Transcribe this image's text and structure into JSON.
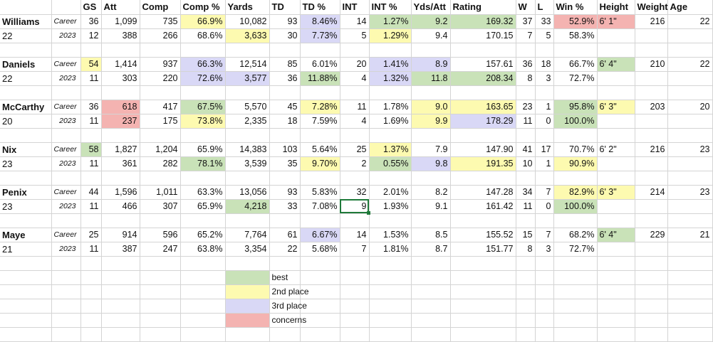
{
  "headers": [
    "",
    "",
    "GS",
    "Att",
    "Comp",
    "Comp %",
    "Yards",
    "TD",
    "TD %",
    "INT",
    "INT %",
    "Yds/Att",
    "Rating",
    "W",
    "L",
    "Win %",
    "Height",
    "Weight",
    "Age"
  ],
  "players": [
    {
      "name": "Williams",
      "age": "22",
      "career": {
        "type": "Career",
        "values": [
          "36",
          "1,099",
          "735",
          "66.9%",
          "10,082",
          "93",
          "8.46%",
          "14",
          "1.27%",
          "9.2",
          "169.32",
          "37",
          "33",
          "52.9%",
          "6' 1\"",
          "216",
          "22"
        ],
        "colors": [
          "",
          "",
          "",
          "second",
          "",
          "",
          "third",
          "",
          "best",
          "best",
          "best",
          "",
          "",
          "concern",
          "concern",
          "",
          ""
        ]
      },
      "season": {
        "type": "2023",
        "values": [
          "12",
          "388",
          "266",
          "68.6%",
          "3,633",
          "30",
          "7.73%",
          "5",
          "1.29%",
          "9.4",
          "170.15",
          "7",
          "5",
          "58.3%",
          "",
          "",
          ""
        ],
        "colors": [
          "",
          "",
          "",
          "",
          "second",
          "",
          "third",
          "",
          "second",
          "",
          "",
          "",
          "",
          "",
          "",
          "",
          ""
        ]
      }
    },
    {
      "name": "Daniels",
      "age": "22",
      "career": {
        "type": "Career",
        "values": [
          "54",
          "1,414",
          "937",
          "66.3%",
          "12,514",
          "85",
          "6.01%",
          "20",
          "1.41%",
          "8.9",
          "157.61",
          "36",
          "18",
          "66.7%",
          "6' 4\"",
          "210",
          "22"
        ],
        "colors": [
          "second",
          "",
          "",
          "third",
          "",
          "",
          "",
          "",
          "third",
          "third",
          "",
          "",
          "",
          "",
          "best",
          "",
          ""
        ]
      },
      "season": {
        "type": "2023",
        "values": [
          "11",
          "303",
          "220",
          "72.6%",
          "3,577",
          "36",
          "11.88%",
          "4",
          "1.32%",
          "11.8",
          "208.34",
          "8",
          "3",
          "72.7%",
          "",
          "",
          ""
        ],
        "colors": [
          "",
          "",
          "",
          "third",
          "third",
          "",
          "best",
          "",
          "third",
          "best",
          "best",
          "",
          "",
          "",
          "",
          "",
          ""
        ]
      }
    },
    {
      "name": "McCarthy",
      "age": "20",
      "career": {
        "type": "Career",
        "values": [
          "36",
          "618",
          "417",
          "67.5%",
          "5,570",
          "45",
          "7.28%",
          "11",
          "1.78%",
          "9.0",
          "163.65",
          "23",
          "1",
          "95.8%",
          "6' 3\"",
          "203",
          "20"
        ],
        "colors": [
          "",
          "concern",
          "",
          "best",
          "",
          "",
          "second",
          "",
          "",
          "second",
          "second",
          "",
          "",
          "best",
          "second",
          "",
          ""
        ]
      },
      "season": {
        "type": "2023",
        "values": [
          "11",
          "237",
          "175",
          "73.8%",
          "2,335",
          "18",
          "7.59%",
          "4",
          "1.69%",
          "9.9",
          "178.29",
          "11",
          "0",
          "100.0%",
          "",
          "",
          ""
        ],
        "colors": [
          "",
          "concern",
          "",
          "second",
          "",
          "",
          "",
          "",
          "",
          "second",
          "third",
          "",
          "",
          "best",
          "",
          "",
          ""
        ]
      }
    },
    {
      "name": "Nix",
      "age": "23",
      "career": {
        "type": "Career",
        "values": [
          "58",
          "1,827",
          "1,204",
          "65.9%",
          "14,383",
          "103",
          "5.64%",
          "25",
          "1.37%",
          "7.9",
          "147.90",
          "41",
          "17",
          "70.7%",
          "6' 2\"",
          "216",
          "23"
        ],
        "colors": [
          "best",
          "",
          "",
          "",
          "",
          "",
          "",
          "",
          "second",
          "",
          "",
          "",
          "",
          "",
          "",
          "",
          ""
        ]
      },
      "season": {
        "type": "2023",
        "values": [
          "11",
          "361",
          "282",
          "78.1%",
          "3,539",
          "35",
          "9.70%",
          "2",
          "0.55%",
          "9.8",
          "191.35",
          "10",
          "1",
          "90.9%",
          "",
          "",
          ""
        ],
        "colors": [
          "",
          "",
          "",
          "best",
          "",
          "",
          "second",
          "",
          "best",
          "third",
          "second",
          "",
          "",
          "second",
          "",
          "",
          ""
        ]
      }
    },
    {
      "name": "Penix",
      "age": "23",
      "career": {
        "type": "Career",
        "values": [
          "44",
          "1,596",
          "1,011",
          "63.3%",
          "13,056",
          "93",
          "5.83%",
          "32",
          "2.01%",
          "8.2",
          "147.28",
          "34",
          "7",
          "82.9%",
          "6' 3\"",
          "214",
          "23"
        ],
        "colors": [
          "",
          "",
          "",
          "",
          "",
          "",
          "",
          "",
          "",
          "",
          "",
          "",
          "",
          "second",
          "second",
          "",
          ""
        ]
      },
      "season": {
        "type": "2023",
        "values": [
          "11",
          "466",
          "307",
          "65.9%",
          "4,218",
          "33",
          "7.08%",
          "9",
          "1.93%",
          "9.1",
          "161.42",
          "11",
          "0",
          "100.0%",
          "",
          "",
          ""
        ],
        "colors": [
          "",
          "",
          "",
          "",
          "best",
          "",
          "",
          "",
          "",
          "",
          "",
          "",
          "",
          "best",
          "",
          "",
          ""
        ]
      }
    },
    {
      "name": "Maye",
      "age": "21",
      "career": {
        "type": "Career",
        "values": [
          "25",
          "914",
          "596",
          "65.2%",
          "7,764",
          "61",
          "6.67%",
          "14",
          "1.53%",
          "8.5",
          "155.52",
          "15",
          "7",
          "68.2%",
          "6' 4\"",
          "229",
          "21"
        ],
        "colors": [
          "",
          "",
          "",
          "",
          "",
          "",
          "third",
          "",
          "",
          "",
          "",
          "",
          "",
          "",
          "best",
          "",
          ""
        ]
      },
      "season": {
        "type": "2023",
        "values": [
          "11",
          "387",
          "247",
          "63.8%",
          "3,354",
          "22",
          "5.68%",
          "7",
          "1.81%",
          "8.7",
          "151.77",
          "8",
          "3",
          "72.7%",
          "",
          "",
          ""
        ],
        "colors": [
          "",
          "",
          "",
          "",
          "",
          "",
          "",
          "",
          "",
          "",
          "",
          "",
          "",
          "",
          "",
          "",
          ""
        ]
      }
    }
  ],
  "legend": [
    {
      "label": "best",
      "color": "#c9e2b8"
    },
    {
      "label": "2nd place",
      "color": "#fdfab0"
    },
    {
      "label": "3rd place",
      "color": "#d9d8f6"
    },
    {
      "label": "concerns",
      "color": "#f4b3b1"
    }
  ],
  "colors": {
    "best": "#c9e2b8",
    "second": "#fdfab0",
    "third": "#d9d8f6",
    "concern": "#f4b3b1",
    "selection": "#1f7a3a",
    "gridline": "#d4d4d4"
  },
  "selected_cell": {
    "player": "Penix",
    "row": "2023",
    "column": "INT",
    "value": "9"
  }
}
